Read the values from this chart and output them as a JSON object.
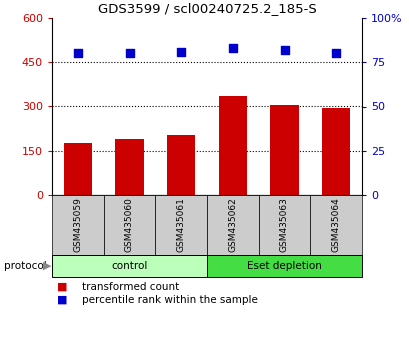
{
  "title": "GDS3599 / scl00240725.2_185-S",
  "categories": [
    "GSM435059",
    "GSM435060",
    "GSM435061",
    "GSM435062",
    "GSM435063",
    "GSM435064"
  ],
  "bar_values": [
    175,
    190,
    205,
    335,
    305,
    295
  ],
  "percentile_values": [
    80,
    80,
    81,
    83,
    82,
    80
  ],
  "bar_color": "#cc0000",
  "dot_color": "#0000cc",
  "left_ylim": [
    0,
    600
  ],
  "left_yticks": [
    0,
    150,
    300,
    450,
    600
  ],
  "right_ylim": [
    0,
    100
  ],
  "right_yticks": [
    0,
    25,
    50,
    75,
    100
  ],
  "right_yticklabels": [
    "0",
    "25",
    "50",
    "75",
    "100%"
  ],
  "left_ytick_color": "#cc0000",
  "right_ytick_color": "#0000cc",
  "groups": [
    {
      "label": "control",
      "indices": [
        0,
        1,
        2
      ],
      "color": "#bbffbb"
    },
    {
      "label": "Eset depletion",
      "indices": [
        3,
        4,
        5
      ],
      "color": "#44dd44"
    }
  ],
  "protocol_label": "protocol",
  "legend_bar_label": "transformed count",
  "legend_dot_label": "percentile rank within the sample",
  "background_color": "#ffffff",
  "plot_bg_color": "#ffffff",
  "tick_label_area_color": "#cccccc",
  "figsize": [
    4.1,
    3.54
  ],
  "dpi": 100
}
